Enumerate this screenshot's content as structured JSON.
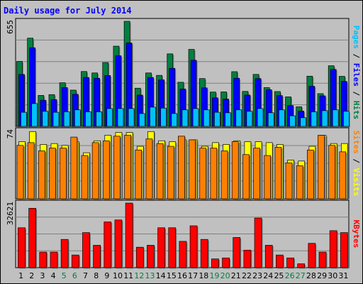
{
  "chart_data": {
    "type": "bar",
    "title": "Daily usage for July 2014",
    "categories": [
      "1",
      "2",
      "3",
      "4",
      "5",
      "6",
      "7",
      "8",
      "9",
      "10",
      "11",
      "12",
      "13",
      "14",
      "15",
      "16",
      "17",
      "18",
      "19",
      "20",
      "21",
      "22",
      "23",
      "24",
      "25",
      "26",
      "27",
      "28",
      "29",
      "30",
      "31"
    ],
    "weekend_days": [
      "5",
      "6",
      "12",
      "13",
      "19",
      "20",
      "26",
      "27"
    ],
    "panels": [
      {
        "id": "pages-files-hits",
        "ymax_label": "655",
        "ylim": [
          0,
          655
        ],
        "series": [
          {
            "name": "Hits",
            "color": "#008040",
            "values": [
              405,
              550,
              193,
              198,
              272,
              226,
              342,
              333,
              398,
              500,
              655,
              238,
              333,
              318,
              452,
              275,
              480,
              298,
              214,
              215,
              341,
              218,
              324,
              242,
              217,
              184,
              122,
              313,
              204,
              378,
              312
            ]
          },
          {
            "name": "Files",
            "color": "#0000ff",
            "values": [
              324,
              490,
              163,
              167,
              242,
              200,
              305,
              300,
              317,
              440,
              520,
              195,
              305,
              290,
              362,
              233,
              412,
              240,
              178,
              170,
              300,
              195,
              298,
              228,
              192,
              130,
              95,
              250,
              190,
              355,
              280
            ]
          },
          {
            "name": "Pages",
            "color": "#00c0ff",
            "values": [
              88,
              142,
              94,
              88,
              91,
              103,
              91,
              91,
              111,
              111,
              111,
              80,
              120,
              114,
              80,
              103,
              111,
              103,
              88,
              85,
              103,
              94,
              111,
              85,
              103,
              66,
              54,
              91,
              98,
              103,
              94
            ]
          }
        ]
      },
      {
        "id": "sites-visits",
        "ymax_label": "74",
        "ylim": [
          0,
          74
        ],
        "series": [
          {
            "name": "Visits",
            "color": "#ffff00",
            "values": [
              62,
              73,
              59,
              60,
              58,
              62,
              50,
              63,
              69,
              72,
              72,
              57,
              73,
              63,
              62,
              64,
              64,
              57,
              61,
              59,
              63,
              62,
              62,
              61,
              59,
              42,
              41,
              57,
              69,
              60,
              60
            ]
          },
          {
            "name": "Sites",
            "color": "#ff8000",
            "values": [
              58,
              61,
              52,
              55,
              55,
              67,
              47,
              61,
              63,
              68,
              69,
              53,
              65,
              60,
              57,
              68,
              64,
              55,
              55,
              52,
              62,
              48,
              55,
              47,
              56,
              39,
              36,
              53,
              69,
              58,
              51
            ]
          }
        ]
      },
      {
        "id": "kbytes",
        "ymax_label": "32621",
        "ylim": [
          0,
          32621
        ],
        "series": [
          {
            "name": "KBytes",
            "color": "#ff0000",
            "values": [
              20155,
              29993,
              7869,
              7869,
              14265,
              6394,
              17702,
              11310,
              23102,
              24085,
              32621,
              10327,
              11310,
              20155,
              20155,
              13283,
              21138,
              14265,
              4422,
              4914,
              15248,
              8852,
              25068,
              11310,
              6394,
              4914,
              1951,
              12294,
              7869,
              18685,
              17702
            ]
          }
        ]
      }
    ],
    "right_labels": {
      "panel1": [
        {
          "text": "Pages",
          "color": "#00c0ff"
        },
        {
          "text": " / ",
          "color": "#000000"
        },
        {
          "text": "Files",
          "color": "#0000ff"
        },
        {
          "text": " / ",
          "color": "#000000"
        },
        {
          "text": "Hits",
          "color": "#008040"
        }
      ],
      "panel2": [
        {
          "text": "Sites",
          "color": "#ff8000"
        },
        {
          "text": " / ",
          "color": "#000000"
        },
        {
          "text": "Visits",
          "color": "#ffff00"
        }
      ],
      "panel3": [
        {
          "text": "KBytes",
          "color": "#ff0000"
        }
      ]
    },
    "colors": {
      "background": "#c0c0c0",
      "title": "#0000ff",
      "weekday_label": "#000000",
      "weekend_label": "#008040",
      "grid": "#808080"
    }
  }
}
